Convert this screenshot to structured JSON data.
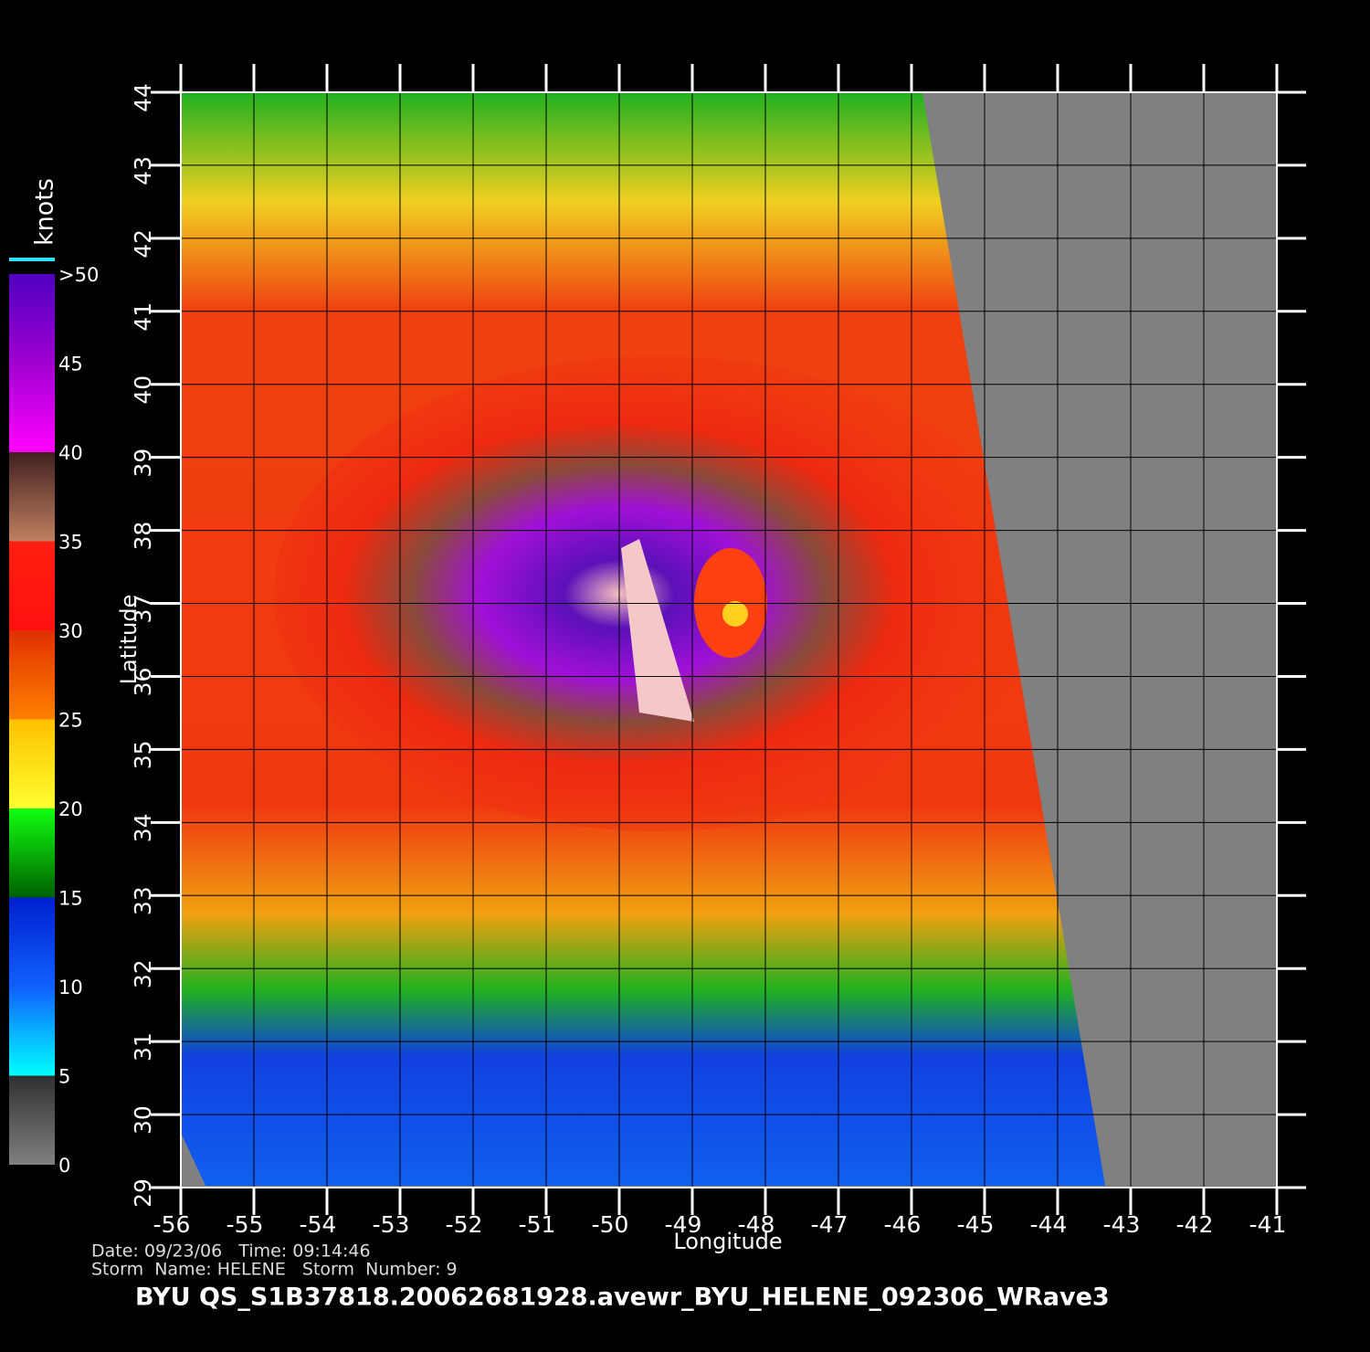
{
  "map": {
    "xlabel": "Longitude",
    "ylabel": "Latitude",
    "xlim": [
      -56,
      -41
    ],
    "ylim": [
      29,
      44
    ],
    "xticks": [
      -56,
      -55,
      -54,
      -53,
      -52,
      -51,
      -50,
      -49,
      -48,
      -47,
      -46,
      -45,
      -44,
      -43,
      -42,
      -41
    ],
    "yticks": [
      29,
      30,
      31,
      32,
      33,
      34,
      35,
      36,
      37,
      38,
      39,
      40,
      41,
      42,
      43,
      44
    ],
    "grid": true
  },
  "colorbar": {
    "label": "knots",
    "lim": [
      0,
      50
    ],
    "ticks": [
      0,
      5,
      10,
      15,
      20,
      25,
      30,
      35,
      40,
      45,
      {
        "value": 50,
        "label": ">50"
      }
    ]
  },
  "info": {
    "date_line": "Date: 09/23/06   Time: 09:14:46",
    "storm_line": "Storm  Name: HELENE   Storm  Number: 9",
    "file": "BYU  QS_S1B37818.20062681928.avewr_BYU_HELENE_092306_WRave3"
  }
}
